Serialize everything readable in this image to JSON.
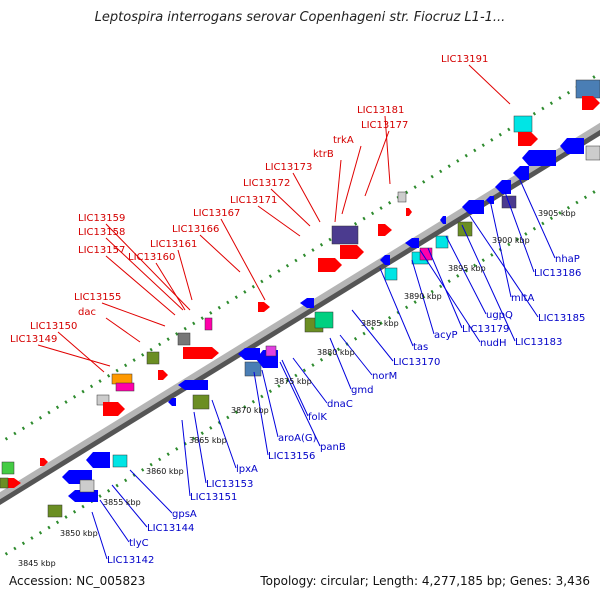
{
  "title": "Leptospira interrogans serovar Copenhageni str. Fiocruz L1-1...",
  "footer": {
    "accession": "Accession: NC_005823",
    "summary": "Topology: circular; Length: 4,277,185 bp; Genes: 3,436"
  },
  "colors": {
    "forward_label": "#d40000",
    "reverse_label": "#0000c8",
    "forward_gene": "#ff0000",
    "reverse_gene": "#0000ff",
    "backbone": "#8a8a8a",
    "ticks": "#2e8b2e",
    "leader_forward": "#e00000",
    "leader_reverse": "#0000dd"
  },
  "position_labels": [
    "3845 kbp",
    "3850 kbp",
    "3855 kbp",
    "3860 kbp",
    "3865 kbp",
    "3870 kbp",
    "3875 kbp",
    "3880 kbp",
    "3885 kbp",
    "3890 kbp",
    "3895 kbp",
    "3900 kbp",
    "3905 kbp"
  ],
  "forward_labels": [
    "LIC13149",
    "LIC13150",
    "dac",
    "LIC13155",
    "LIC13157",
    "LIC13158",
    "LIC13159",
    "LIC13160",
    "LIC13161",
    "LIC13166",
    "LIC13167",
    "LIC13171",
    "LIC13172",
    "LIC13173",
    "ktrB",
    "trkA",
    "LIC13177",
    "LIC13181",
    "LIC13191"
  ],
  "reverse_labels": [
    "LIC13142",
    "tlyC",
    "LIC13144",
    "gpsA",
    "LIC13151",
    "LIC13153",
    "lpxA",
    "LIC13156",
    "aroA(G)",
    "panB",
    "folK",
    "dnaC",
    "gmd",
    "norM",
    "LIC13170",
    "tas",
    "acyP",
    "nudH",
    "LIC13179",
    "ugpQ",
    "LIC13183",
    "LIC13185",
    "mltA",
    "LIC13186",
    "nhaP"
  ]
}
